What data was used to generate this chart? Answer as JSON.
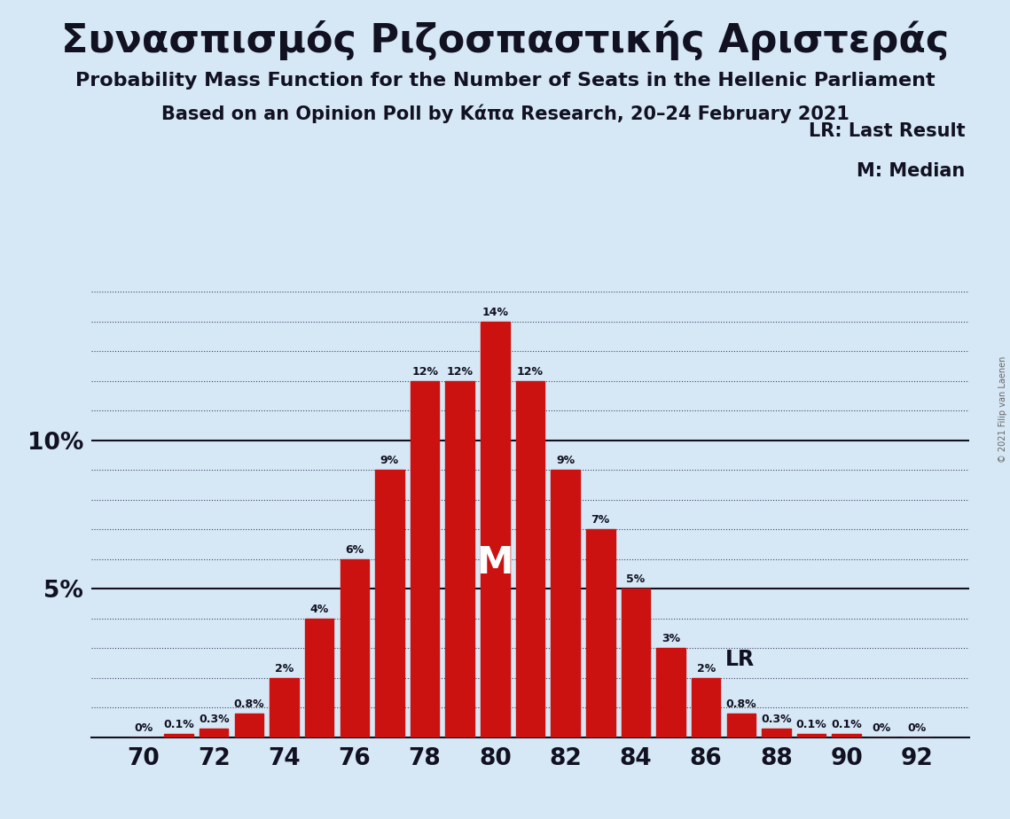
{
  "title_greek": "Συνασπισμός Ριζοσπαστικής Αριστεράς",
  "subtitle1": "Probability Mass Function for the Number of Seats in the Hellenic Parliament",
  "subtitle2": "Based on an Opinion Poll by Κάπα Research, 20–24 February 2021",
  "copyright": "© 2021 Filip van Laenen",
  "seats": [
    70,
    71,
    72,
    73,
    74,
    75,
    76,
    77,
    78,
    79,
    80,
    81,
    82,
    83,
    84,
    85,
    86,
    87,
    88,
    89,
    90,
    91,
    92
  ],
  "probabilities": [
    0.0,
    0.1,
    0.3,
    0.8,
    2.0,
    4.0,
    6.0,
    9.0,
    12.0,
    12.0,
    14.0,
    12.0,
    9.0,
    7.0,
    5.0,
    3.0,
    2.0,
    0.8,
    0.3,
    0.1,
    0.1,
    0.0,
    0.0
  ],
  "bar_color": "#cc1111",
  "background_color": "#d6e8f5",
  "median_seat": 80,
  "lr_seat": 86,
  "xlim_left": 68.5,
  "xlim_right": 93.5,
  "ylim_top": 16.0,
  "solid_hlines": [
    5.0,
    10.0
  ],
  "dotted_hline_step": 1.0,
  "legend_lr": "LR: Last Result",
  "legend_m": "M: Median",
  "bar_width": 0.82,
  "bar_label_fontsize": 9,
  "median_label_fontsize": 30,
  "lr_label_fontsize": 17,
  "xtick_fontsize": 19,
  "ytick_fontsize": 19,
  "title_fontsize": 32,
  "subtitle1_fontsize": 16,
  "subtitle2_fontsize": 15,
  "legend_fontsize": 15
}
